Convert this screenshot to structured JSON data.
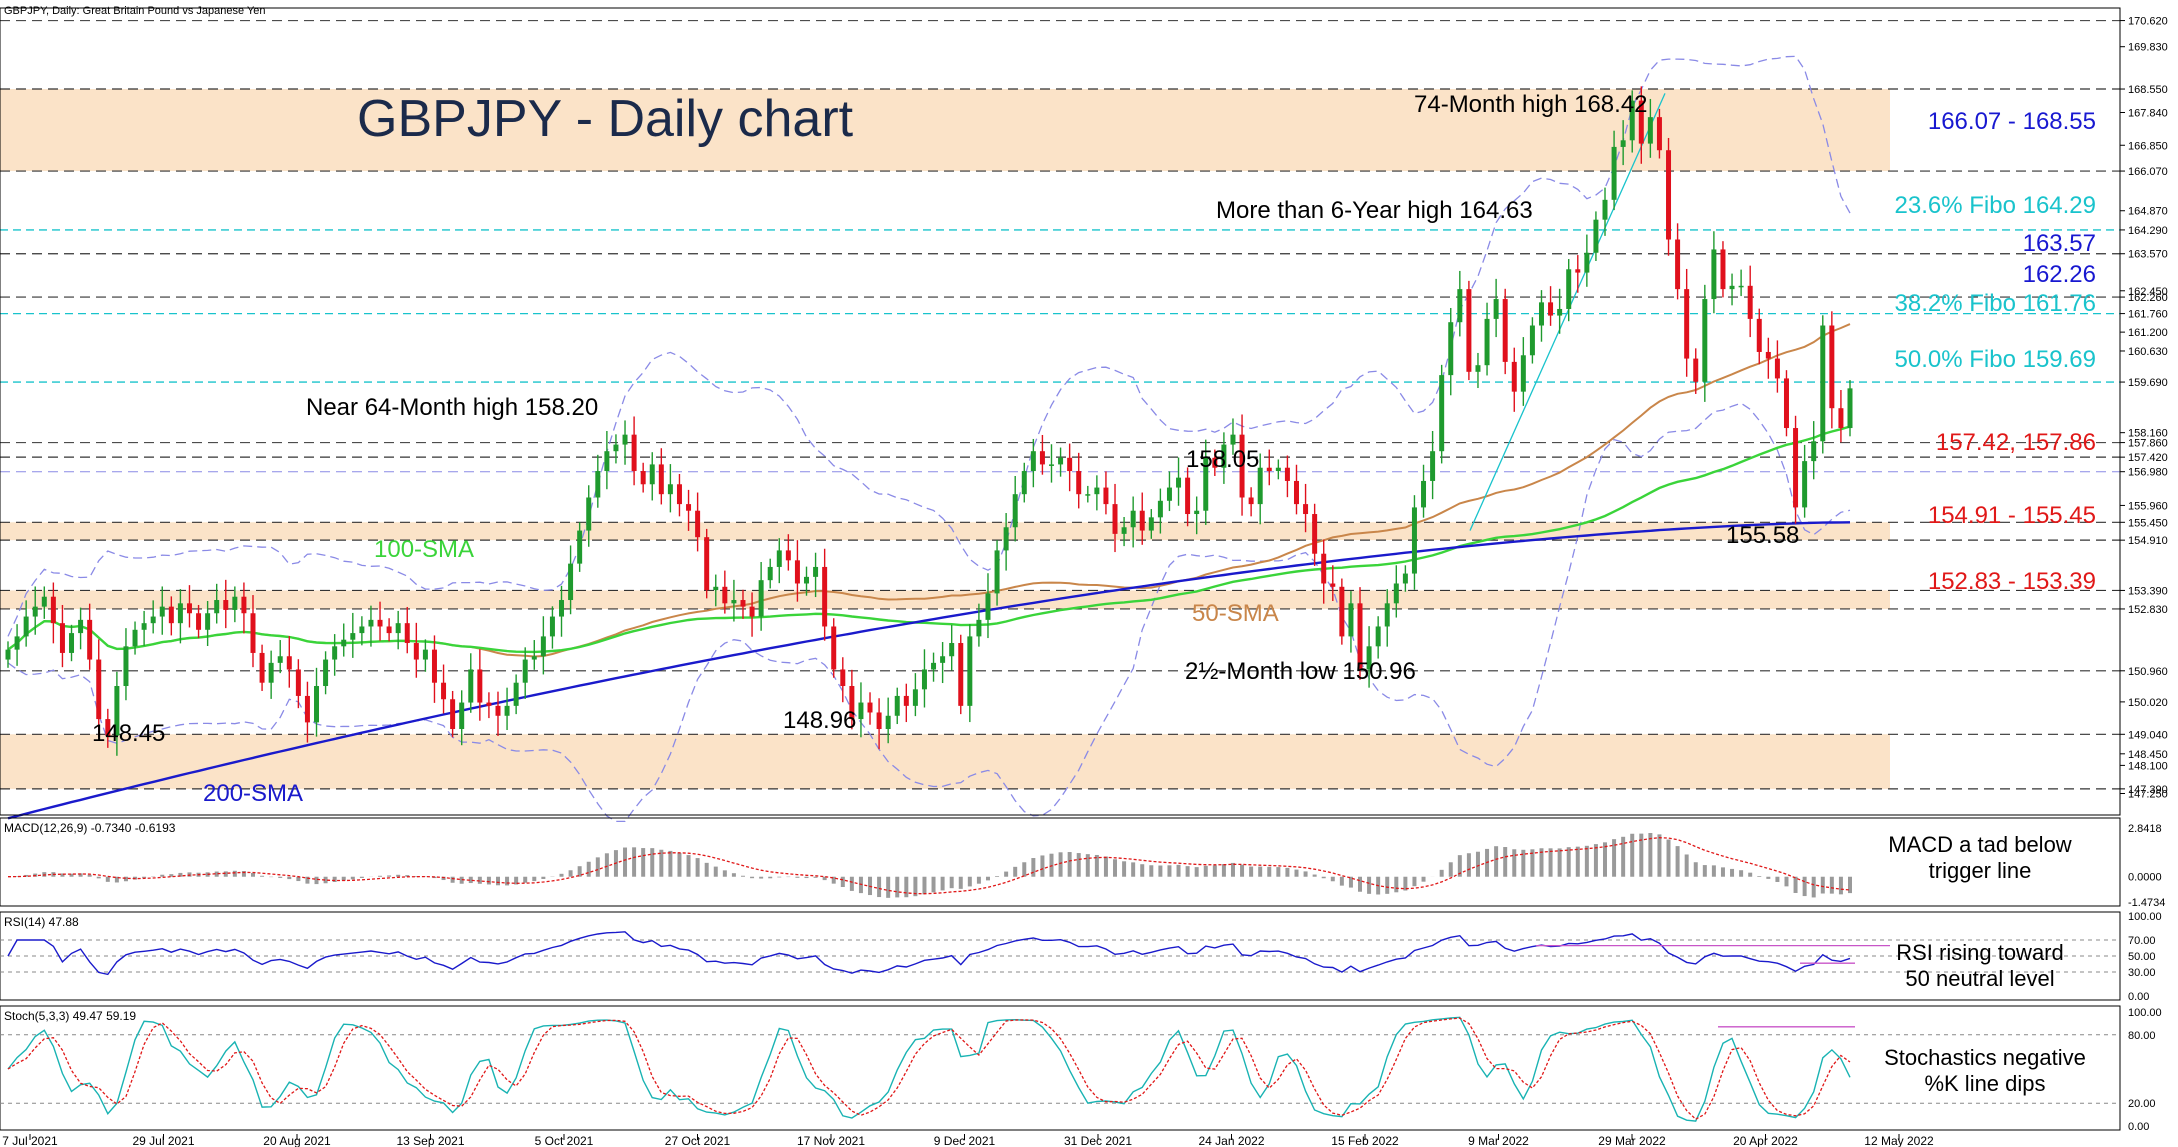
{
  "header": {
    "symbol_text": "GBPJPY, Daily:  Great Britain Pound vs Japanese Yen"
  },
  "main_title": "GBPJPY - Daily chart",
  "colors": {
    "up": "#1f9a2e",
    "down": "#e0101c",
    "sma50": "#c9864a",
    "sma100": "#3ad43a",
    "sma200": "#1a1acb",
    "band": "#8a8ae6",
    "zone": "#fbe3c8",
    "fibo": "#19c3cc",
    "resistance_blue": "#1818d0",
    "support_red": "#e01818"
  },
  "chart_data": [
    {
      "type": "candlestick",
      "title": "GBPJPY - Daily chart",
      "ylim": [
        146.6,
        171.0
      ],
      "x_tick_labels": [
        "7 Jul 2021",
        "29 Jul 2021",
        "20 Aug 2021",
        "13 Sep 2021",
        "5 Oct 2021",
        "27 Oct 2021",
        "17 Nov 2021",
        "9 Dec 2021",
        "31 Dec 2021",
        "24 Jan 2022",
        "15 Feb 2022",
        "9 Mar 2022",
        "29 Mar 2022",
        "20 Apr 2022",
        "12 May 2022"
      ],
      "y_tick_labels": [
        "170.620",
        "169.830",
        "168.550",
        "167.840",
        "166.850",
        "166.070",
        "164.870",
        "164.290",
        "163.570",
        "162.450",
        "162.260",
        "161.760",
        "161.200",
        "160.630",
        "159.690",
        "158.160",
        "157.860",
        "157.420",
        "156.980",
        "155.960",
        "155.450",
        "154.910",
        "153.390",
        "152.830",
        "150.960",
        "150.020",
        "149.040",
        "148.450",
        "148.100",
        "147.390",
        "147.250"
      ],
      "zones": [
        {
          "from": 166.07,
          "to": 168.55,
          "label": "166.07 - 168.55"
        },
        {
          "from": 154.91,
          "to": 155.45,
          "label": "154.91 - 155.45"
        },
        {
          "from": 152.83,
          "to": 153.39,
          "label": "152.83 - 153.39"
        },
        {
          "from": 147.39,
          "to": 149.04,
          "label": ""
        }
      ],
      "fibo_levels": [
        {
          "value": 164.29,
          "label": "23.6% Fibo 164.29"
        },
        {
          "value": 161.76,
          "label": "38.2% Fibo 161.76"
        },
        {
          "value": 159.69,
          "label": "50.0% Fibo 159.69"
        }
      ],
      "horizontal_levels": [
        {
          "value": 163.57,
          "label": "163.57"
        },
        {
          "value": 162.26,
          "label": "162.26"
        },
        {
          "value": 157.42,
          "label": "157.42, 157.86"
        },
        {
          "value": 150.96,
          "label": ""
        }
      ],
      "annotations": {
        "high_74m": "74-Month high 168.42",
        "high_6y": "More than 6-Year high 164.63",
        "near_64m": "Near 64-Month high 158.20",
        "peak_158": "158.05",
        "low_15558": "155.58",
        "low_2half": "2½-Month low 150.96",
        "low_14896": "148.96",
        "low_14845": "148.45",
        "sma100_label": "100-SMA",
        "sma50_label": "50-SMA",
        "sma200_label": "200-SMA"
      },
      "series": [
        {
          "name": "Price",
          "close": [
            151.6,
            152.0,
            152.6,
            152.9,
            153.2,
            152.4,
            151.5,
            152.1,
            152.5,
            151.3,
            149.5,
            149.0,
            150.5,
            151.7,
            152.2,
            152.4,
            152.6,
            152.9,
            152.4,
            153.0,
            152.7,
            152.2,
            152.7,
            153.1,
            152.8,
            153.2,
            152.7,
            151.5,
            150.6,
            151.2,
            151.4,
            151.0,
            150.2,
            149.4,
            150.5,
            151.3,
            151.7,
            151.9,
            152.1,
            152.3,
            152.5,
            152.3,
            152.1,
            152.4,
            151.8,
            151.3,
            151.6,
            150.6,
            150.1,
            149.2,
            150.0,
            151.0,
            150.0,
            149.9,
            149.6,
            149.9,
            150.6,
            151.3,
            151.4,
            152.0,
            152.6,
            153.1,
            154.2,
            155.2,
            156.2,
            157.0,
            157.6,
            157.8,
            158.1,
            157.0,
            156.6,
            157.2,
            156.3,
            156.6,
            156.0,
            155.8,
            155.0,
            153.4,
            153.5,
            153.0,
            153.1,
            152.9,
            152.6,
            153.7,
            154.1,
            154.6,
            154.3,
            153.6,
            153.8,
            154.1,
            152.3,
            151.0,
            150.5,
            149.5,
            150.0,
            149.7,
            149.2,
            149.6,
            150.2,
            149.9,
            150.4,
            151.0,
            151.2,
            151.4,
            151.8,
            149.9,
            152.0,
            152.5,
            153.3,
            154.6,
            155.3,
            156.3,
            157.0,
            157.6,
            157.2,
            157.2,
            157.4,
            157.0,
            156.3,
            156.3,
            156.5,
            156.0,
            155.1,
            155.3,
            155.8,
            155.2,
            155.6,
            156.1,
            156.5,
            156.8,
            155.7,
            155.8,
            157.4,
            157.1,
            157.8,
            158.1,
            156.2,
            156.0,
            157.1,
            157.0,
            157.1,
            156.7,
            156.0,
            155.7,
            154.5,
            153.6,
            153.5,
            152.0,
            153.0,
            151.0,
            151.7,
            152.3,
            153.0,
            153.6,
            153.9,
            155.9,
            156.7,
            157.6,
            159.9,
            161.5,
            162.5,
            160.0,
            160.2,
            161.6,
            162.2,
            160.3,
            159.4,
            160.5,
            161.4,
            162.1,
            161.7,
            161.9,
            163.1,
            163.0,
            163.6,
            164.6,
            165.2,
            166.8,
            167.0,
            168.2,
            166.9,
            167.7,
            166.7,
            164.0,
            162.5,
            160.4,
            159.7,
            162.2,
            163.7,
            162.5,
            162.6,
            162.6,
            161.6,
            160.6,
            160.4,
            159.8,
            158.3,
            155.9,
            157.3,
            157.9,
            161.4,
            158.9,
            158.3,
            159.5
          ]
        },
        {
          "name": "50-SMA",
          "start": 152.8,
          "end": 161.2
        },
        {
          "name": "100-SMA",
          "start": 152.5,
          "end": 157.9
        },
        {
          "name": "200-SMA",
          "start": 146.5,
          "end": 155.45
        }
      ]
    },
    {
      "type": "bar",
      "title": "MACD(12,26,9) -0.7340 -0.6193",
      "ylim": [
        -1.4734,
        2.8418
      ],
      "y_tick_labels": [
        "2.8418",
        "0.0000",
        "-1.4734"
      ],
      "annotation": "MACD a tad below trigger line",
      "values_last": {
        "macd": -0.734,
        "signal": -0.6193
      }
    },
    {
      "type": "line",
      "title": "RSI(14) 47.88",
      "ylim": [
        0,
        100
      ],
      "y_tick_labels": [
        "100.00",
        "70.00",
        "50.00",
        "30.00",
        "0.00"
      ],
      "annotation": "RSI rising toward 50 neutral level",
      "values_last": {
        "rsi": 47.88
      }
    },
    {
      "type": "line",
      "title": "Stoch(5,3,3) 49.47 59.19",
      "ylim": [
        0,
        100
      ],
      "y_tick_labels": [
        "100.00",
        "80.00",
        "20.00",
        "0.00"
      ],
      "annotation": "Stochastics negative %K line dips",
      "values_last": {
        "k": 49.47,
        "d": 59.19
      }
    }
  ]
}
